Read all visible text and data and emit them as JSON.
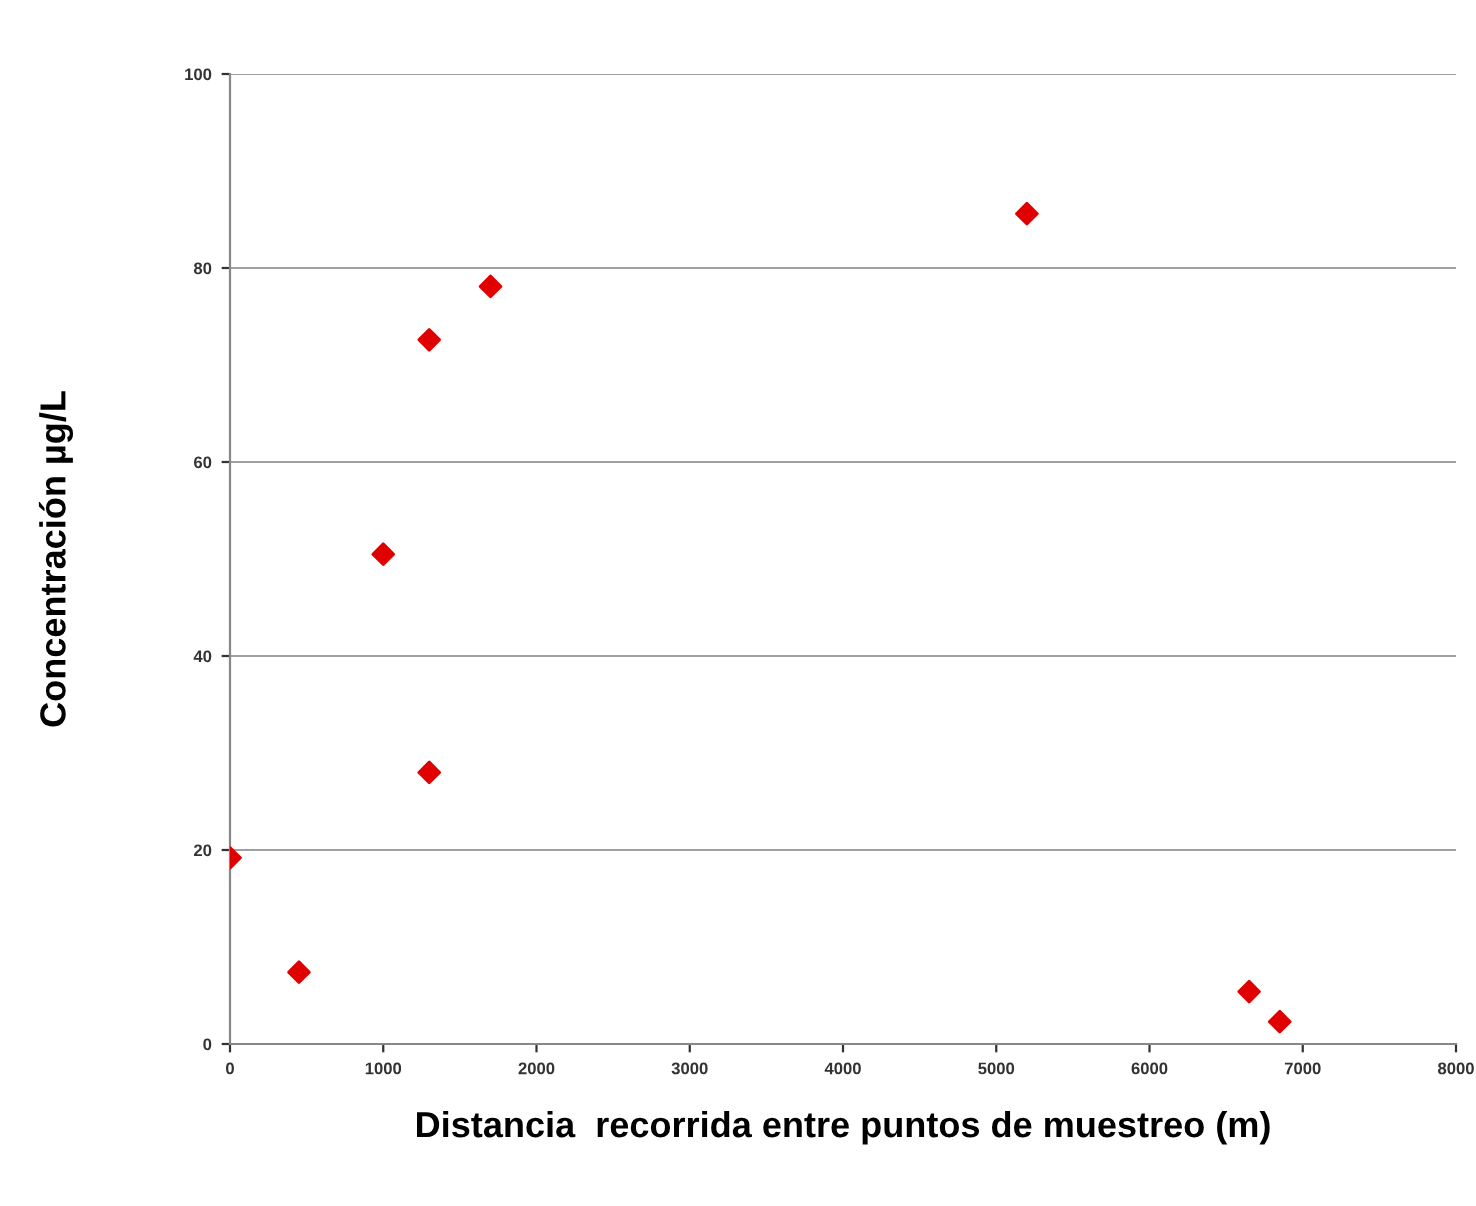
{
  "chart_data": {
    "type": "scatter",
    "xlabel": "Distancia  recorrida entre puntos de muestreo (m)",
    "ylabel": "Concentración µg/L",
    "x": [
      0,
      450,
      1000,
      1300,
      1300,
      1700,
      5200,
      6650,
      6850
    ],
    "series": [
      {
        "color": "#e00000",
        "values": [
          19.2,
          7.4,
          50.5,
          28.0,
          72.6,
          78.1,
          85.6,
          5.4,
          2.3
        ]
      }
    ],
    "xlim": [
      0,
      8000
    ],
    "xticks": [
      0,
      1000,
      2000,
      3000,
      4000,
      5000,
      6000,
      7000,
      8000
    ],
    "ylim": [
      0,
      100
    ],
    "yticks": [
      0,
      20,
      40,
      60,
      80,
      100
    ],
    "grid": "y",
    "marker": "diamond",
    "legend": false
  }
}
